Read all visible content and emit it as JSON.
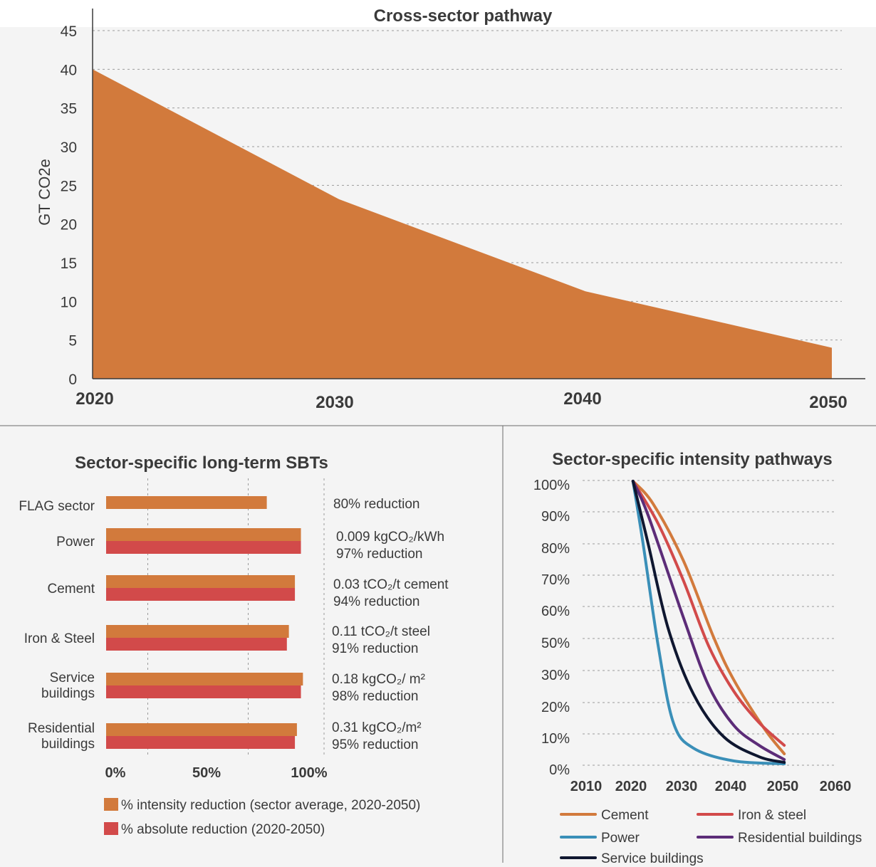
{
  "colors": {
    "area": "#d27a3c",
    "intensity": "#d27a3c",
    "absolute": "#d24a4a",
    "cement": "#d27a3c",
    "iron_steel": "#d24a4a",
    "power": "#3a8fb8",
    "residential": "#5c2c78",
    "service": "#0f1730"
  },
  "chart_data": [
    {
      "type": "area",
      "title": "Cross-sector pathway",
      "ylabel": "GT CO2e",
      "xlabel": "",
      "ylim": [
        0,
        45
      ],
      "yticks": [
        0,
        5,
        10,
        15,
        20,
        25,
        30,
        35,
        40,
        45
      ],
      "xticks": [
        "2020",
        "2030",
        "2040",
        "2050"
      ],
      "grid": true,
      "x": [
        2020,
        2030,
        2040,
        2050
      ],
      "values": [
        40,
        23.2,
        11.3,
        4
      ]
    },
    {
      "type": "bar",
      "title": "Sector-specific long-term SBTs",
      "orientation": "horizontal",
      "xticks": [
        "0%",
        "50%",
        "100%"
      ],
      "xlim": [
        0,
        100
      ],
      "categories": [
        {
          "lines": [
            "FLAG sector"
          ]
        },
        {
          "lines": [
            "Power"
          ]
        },
        {
          "lines": [
            "Cement"
          ]
        },
        {
          "lines": [
            "Iron & Steel"
          ]
        },
        {
          "lines": [
            "Service",
            "buildings"
          ]
        },
        {
          "lines": [
            "Residential",
            "buildings"
          ]
        }
      ],
      "series": [
        {
          "name": "% intensity reduction (sector average, 2020-2050)",
          "values": [
            80,
            97,
            94,
            91,
            98,
            95
          ]
        },
        {
          "name": "% absolute reduction (2020-2050)",
          "values": [
            null,
            97,
            94,
            90,
            97,
            94
          ]
        }
      ],
      "annotations": [
        {
          "lines": [
            "80% reduction"
          ]
        },
        {
          "lines": [
            "0.009 kgCO₂/kWh",
            "97% reduction"
          ]
        },
        {
          "lines": [
            "0.03 tCO₂/t cement",
            "94% reduction"
          ]
        },
        {
          "lines": [
            "0.11 tCO₂/t steel",
            "91% reduction"
          ]
        },
        {
          "lines": [
            "0.18 kgCO₂/ m²",
            "98% reduction"
          ]
        },
        {
          "lines": [
            "0.31 kgCO₂/m²",
            "95% reduction"
          ]
        }
      ],
      "legend": "bottom"
    },
    {
      "type": "line",
      "title": "Sector-specific intensity pathways",
      "ylim": [
        0,
        100
      ],
      "yticks": [
        "0%",
        "10%",
        "20%",
        "30%",
        "50%",
        "60%",
        "70%",
        "80%",
        "90%",
        "100%"
      ],
      "xticks": [
        "2010",
        "2020",
        "2030",
        "2040",
        "2050",
        "2060"
      ],
      "grid": true,
      "legend": "bottom",
      "series": [
        {
          "name": "Cement",
          "color_key": "cement",
          "points": [
            [
              2020,
              100
            ],
            [
              2024,
              92
            ],
            [
              2030,
              72
            ],
            [
              2036,
              45
            ],
            [
              2040,
              30
            ],
            [
              2046,
              13
            ],
            [
              2050,
              4
            ]
          ]
        },
        {
          "name": "Iron & steel",
          "color_key": "iron_steel",
          "points": [
            [
              2020,
              100
            ],
            [
              2025,
              85
            ],
            [
              2030,
              65
            ],
            [
              2035,
              42
            ],
            [
              2040,
              26
            ],
            [
              2045,
              15
            ],
            [
              2050,
              7
            ]
          ]
        },
        {
          "name": "Power",
          "color_key": "power",
          "points": [
            [
              2020,
              100
            ],
            [
              2022,
              78
            ],
            [
              2025,
              42
            ],
            [
              2028,
              15
            ],
            [
              2032,
              6
            ],
            [
              2040,
              1.5
            ],
            [
              2050,
              0.5
            ]
          ]
        },
        {
          "name": "Residential buildings",
          "color_key": "residential",
          "points": [
            [
              2020,
              100
            ],
            [
              2023,
              88
            ],
            [
              2030,
              52
            ],
            [
              2035,
              28
            ],
            [
              2040,
              14
            ],
            [
              2045,
              7
            ],
            [
              2050,
              2
            ]
          ]
        },
        {
          "name": "Service buildings",
          "color_key": "service",
          "points": [
            [
              2020,
              100
            ],
            [
              2023,
              78
            ],
            [
              2027,
              48
            ],
            [
              2032,
              25
            ],
            [
              2038,
              10
            ],
            [
              2045,
              3
            ],
            [
              2050,
              1
            ]
          ]
        }
      ]
    }
  ]
}
